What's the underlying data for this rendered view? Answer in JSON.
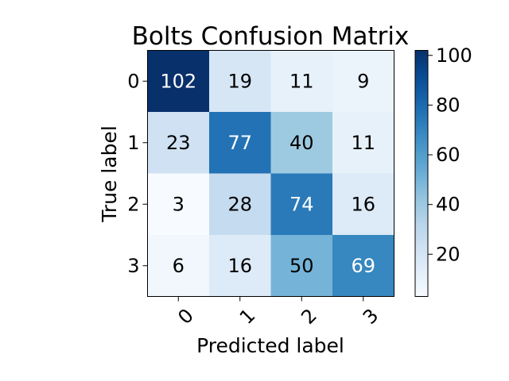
{
  "chart_data": {
    "type": "heatmap",
    "title": "Bolts Confusion Matrix",
    "xlabel": "Predicted label",
    "ylabel": "True label",
    "x_categories": [
      "0",
      "1",
      "2",
      "3"
    ],
    "y_categories": [
      "0",
      "1",
      "2",
      "3"
    ],
    "values": [
      [
        102,
        19,
        11,
        9
      ],
      [
        23,
        77,
        40,
        11
      ],
      [
        3,
        28,
        74,
        16
      ],
      [
        6,
        16,
        50,
        69
      ]
    ],
    "colormap": "Blues",
    "value_range": [
      3,
      102
    ],
    "colorbar_ticks": [
      "20",
      "40",
      "60",
      "80",
      "100"
    ],
    "colorbar_tick_values": [
      20,
      40,
      60,
      80,
      100
    ],
    "grid": false,
    "legend": "colorbar-right"
  }
}
